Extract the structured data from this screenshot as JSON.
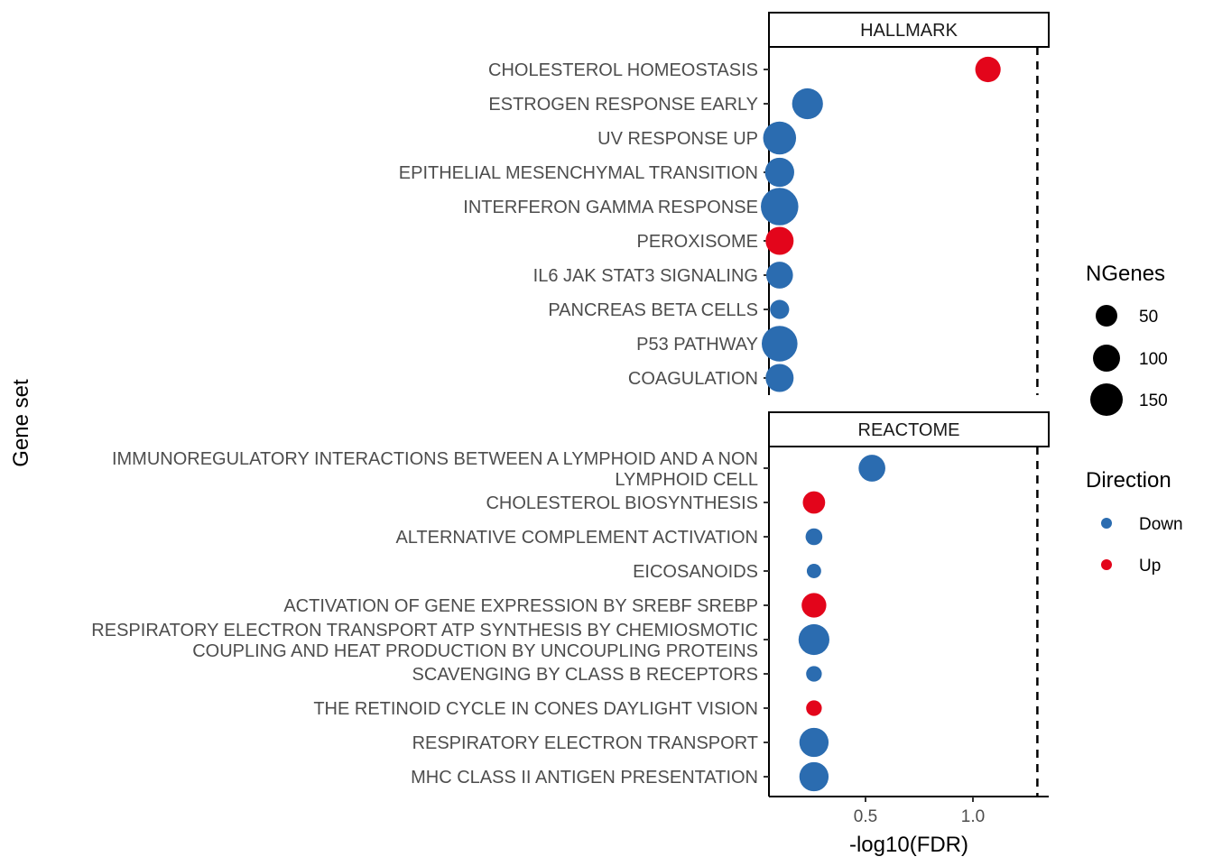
{
  "chart_data": {
    "type": "scatter",
    "xlabel": "-log10(FDR)",
    "ylabel": "Gene set",
    "x_ticks": [
      "0.5",
      "1.0"
    ],
    "x_tick_values": [
      0.5,
      1.0
    ],
    "xlim": [
      0.04,
      1.35
    ],
    "reference_line_x": 1.3,
    "colors": {
      "Down": "#2b6cb0",
      "Up": "#e3051b"
    },
    "legend_size": {
      "title": "NGenes",
      "entries": [
        {
          "label": "50",
          "value": 50
        },
        {
          "label": "100",
          "value": 100
        },
        {
          "label": "150",
          "value": 150
        }
      ]
    },
    "legend_color": {
      "title": "Direction",
      "entries": [
        {
          "label": "Down",
          "key": "Down"
        },
        {
          "label": "Up",
          "key": "Up"
        }
      ]
    },
    "facets": [
      {
        "name": "HALLMARK",
        "points": [
          {
            "label": [
              "CHOLESTEROL HOMEOSTASIS"
            ],
            "x": 1.07,
            "size": 65,
            "direction": "Up"
          },
          {
            "label": [
              "ESTROGEN RESPONSE EARLY"
            ],
            "x": 0.23,
            "size": 110,
            "direction": "Down"
          },
          {
            "label": [
              "UV RESPONSE UP"
            ],
            "x": 0.1,
            "size": 130,
            "direction": "Down"
          },
          {
            "label": [
              "EPITHELIAL MESENCHYMAL TRANSITION"
            ],
            "x": 0.1,
            "size": 95,
            "direction": "Down"
          },
          {
            "label": [
              "INTERFERON GAMMA RESPONSE"
            ],
            "x": 0.1,
            "size": 180,
            "direction": "Down"
          },
          {
            "label": [
              "PEROXISOME"
            ],
            "x": 0.1,
            "size": 85,
            "direction": "Up"
          },
          {
            "label": [
              "IL6 JAK STAT3 SIGNALING"
            ],
            "x": 0.1,
            "size": 75,
            "direction": "Down"
          },
          {
            "label": [
              "PANCREAS BETA CELLS"
            ],
            "x": 0.1,
            "size": 28,
            "direction": "Down"
          },
          {
            "label": [
              "P53 PATHWAY"
            ],
            "x": 0.1,
            "size": 160,
            "direction": "Down"
          },
          {
            "label": [
              "COAGULATION"
            ],
            "x": 0.1,
            "size": 85,
            "direction": "Down"
          }
        ]
      },
      {
        "name": "REACTOME",
        "points": [
          {
            "label": [
              "IMMUNOREGULATORY INTERACTIONS BETWEEN A LYMPHOID AND A NON",
              "LYMPHOID CELL"
            ],
            "x": 0.53,
            "size": 75,
            "direction": "Down"
          },
          {
            "label": [
              "CHOLESTEROL BIOSYNTHESIS"
            ],
            "x": 0.26,
            "size": 45,
            "direction": "Up"
          },
          {
            "label": [
              "ALTERNATIVE COMPLEMENT ACTIVATION"
            ],
            "x": 0.26,
            "size": 18,
            "direction": "Down"
          },
          {
            "label": [
              "EICOSANOIDS"
            ],
            "x": 0.26,
            "size": 10,
            "direction": "Down"
          },
          {
            "label": [
              "ACTIVATION OF GENE EXPRESSION BY SREBF SREBP"
            ],
            "x": 0.26,
            "size": 60,
            "direction": "Up"
          },
          {
            "label": [
              "RESPIRATORY ELECTRON TRANSPORT ATP SYNTHESIS BY CHEMIOSMOTIC",
              "COUPLING AND HEAT PRODUCTION BY UNCOUPLING PROTEINS"
            ],
            "x": 0.26,
            "size": 110,
            "direction": "Down"
          },
          {
            "label": [
              "SCAVENGING BY CLASS B RECEPTORS"
            ],
            "x": 0.26,
            "size": 14,
            "direction": "Down"
          },
          {
            "label": [
              "THE RETINOID CYCLE IN CONES DAYLIGHT VISION"
            ],
            "x": 0.26,
            "size": 14,
            "direction": "Up"
          },
          {
            "label": [
              "RESPIRATORY ELECTRON TRANSPORT"
            ],
            "x": 0.26,
            "size": 95,
            "direction": "Down"
          },
          {
            "label": [
              "MHC CLASS II ANTIGEN PRESENTATION"
            ],
            "x": 0.26,
            "size": 95,
            "direction": "Down"
          }
        ]
      }
    ]
  }
}
